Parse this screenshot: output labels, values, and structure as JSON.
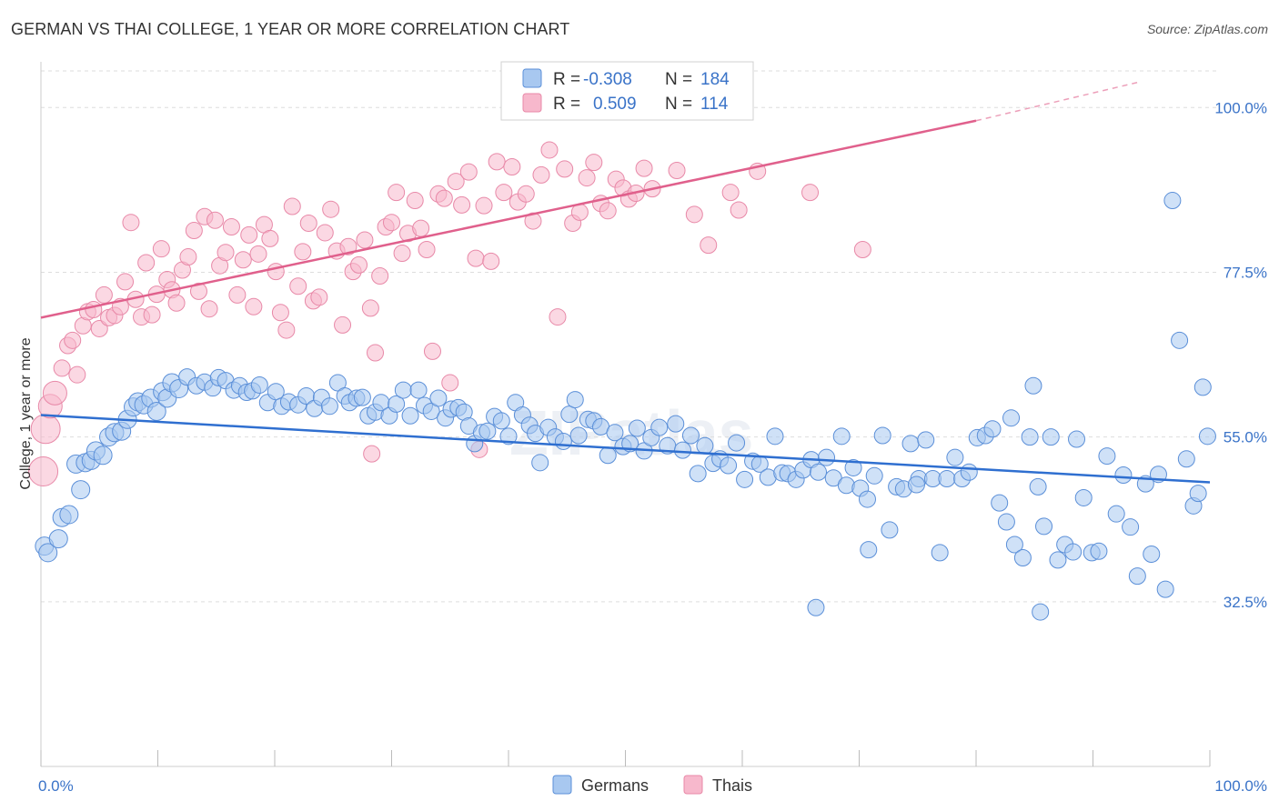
{
  "title": "GERMAN VS THAI COLLEGE, 1 YEAR OR MORE CORRELATION CHART",
  "source": "Source: ZipAtlas.com",
  "watermark": "ZIPatlas",
  "colors": {
    "german_fill": "#a8c8f0",
    "german_stroke": "#5b8fd8",
    "german_line": "#2f6fd0",
    "thai_fill": "#f7b8cc",
    "thai_stroke": "#e889a8",
    "thai_line": "#e0608c",
    "tick_text": "#3a73c8",
    "grid": "#dddddd"
  },
  "legend": {
    "german": {
      "r_label": "R =",
      "r_value": "-0.308",
      "n_label": "N =",
      "n_value": "184"
    },
    "thai": {
      "r_label": "R =",
      "r_value": "0.509",
      "n_label": "N =",
      "n_value": "114"
    }
  },
  "bottom_legend": {
    "german": "Germans",
    "thai": "Thais"
  },
  "chart_data": {
    "type": "scatter",
    "xlabel": "",
    "ylabel": "College, 1 year or more",
    "x_tick_labels": [
      "0.0%",
      "100.0%"
    ],
    "y_tick_labels": [
      "100.0%",
      "77.5%",
      "55.0%",
      "32.5%"
    ],
    "y_tick_values": [
      100.0,
      77.5,
      55.0,
      32.5
    ],
    "xlim": [
      0,
      100
    ],
    "ylim": [
      10,
      105
    ],
    "grid": true,
    "legend_position": "top-center",
    "series": [
      {
        "name": "Germans",
        "r": -0.308,
        "n": 184,
        "trend": {
          "x0": 0,
          "y0": 58.0,
          "x1": 100,
          "y1": 48.8
        },
        "points": [
          [
            0.3,
            40.1
          ],
          [
            0.6,
            39.2
          ],
          [
            1.5,
            41.1
          ],
          [
            1.8,
            44.0
          ],
          [
            2.4,
            44.4
          ],
          [
            3.0,
            51.3
          ],
          [
            3.4,
            47.8
          ],
          [
            3.8,
            51.5
          ],
          [
            4.3,
            51.8
          ],
          [
            4.7,
            53.1
          ],
          [
            5.3,
            52.5
          ],
          [
            5.8,
            55.0
          ],
          [
            6.3,
            55.6
          ],
          [
            6.9,
            55.8
          ],
          [
            7.4,
            57.4
          ],
          [
            7.9,
            59.1
          ],
          [
            8.3,
            59.8
          ],
          [
            8.8,
            59.4
          ],
          [
            9.4,
            60.3
          ],
          [
            9.9,
            58.5
          ],
          [
            10.4,
            61.2
          ],
          [
            10.8,
            60.3
          ],
          [
            11.2,
            62.4
          ],
          [
            11.8,
            61.6
          ],
          [
            12.5,
            63.2
          ],
          [
            13.3,
            62.0
          ],
          [
            14.0,
            62.5
          ],
          [
            14.7,
            61.7
          ],
          [
            15.2,
            63.1
          ],
          [
            15.8,
            62.7
          ],
          [
            16.5,
            61.4
          ],
          [
            17.0,
            62.0
          ],
          [
            17.6,
            61.1
          ],
          [
            18.1,
            61.3
          ],
          [
            18.7,
            62.1
          ],
          [
            19.4,
            59.7
          ],
          [
            20.1,
            61.2
          ],
          [
            20.6,
            59.2
          ],
          [
            21.2,
            59.8
          ],
          [
            22.0,
            59.4
          ],
          [
            22.7,
            60.6
          ],
          [
            23.4,
            58.9
          ],
          [
            24.0,
            60.4
          ],
          [
            24.7,
            59.2
          ],
          [
            25.4,
            62.4
          ],
          [
            26.0,
            60.6
          ],
          [
            26.4,
            59.7
          ],
          [
            27.0,
            60.3
          ],
          [
            27.5,
            60.4
          ],
          [
            28.0,
            57.9
          ],
          [
            28.6,
            58.4
          ],
          [
            29.1,
            59.7
          ],
          [
            29.8,
            57.9
          ],
          [
            30.4,
            59.5
          ],
          [
            31.0,
            61.4
          ],
          [
            31.6,
            57.9
          ],
          [
            32.3,
            61.4
          ],
          [
            32.8,
            59.3
          ],
          [
            33.4,
            58.5
          ],
          [
            34.0,
            60.3
          ],
          [
            34.6,
            57.6
          ],
          [
            35.1,
            58.8
          ],
          [
            35.7,
            59.0
          ],
          [
            36.2,
            58.4
          ],
          [
            36.6,
            56.5
          ],
          [
            37.1,
            54.1
          ],
          [
            37.7,
            55.6
          ],
          [
            38.2,
            55.8
          ],
          [
            38.8,
            57.8
          ],
          [
            39.4,
            57.2
          ],
          [
            40.0,
            55.1
          ],
          [
            40.6,
            59.7
          ],
          [
            41.2,
            58.0
          ],
          [
            41.8,
            56.6
          ],
          [
            42.3,
            55.5
          ],
          [
            42.7,
            51.5
          ],
          [
            43.4,
            56.3
          ],
          [
            44.0,
            55.0
          ],
          [
            44.7,
            54.4
          ],
          [
            45.2,
            58.1
          ],
          [
            45.7,
            60.1
          ],
          [
            46.0,
            55.2
          ],
          [
            46.8,
            57.4
          ],
          [
            47.3,
            57.2
          ],
          [
            47.9,
            56.4
          ],
          [
            48.5,
            52.5
          ],
          [
            49.1,
            55.6
          ],
          [
            49.8,
            53.7
          ],
          [
            50.4,
            54.1
          ],
          [
            51.0,
            56.2
          ],
          [
            51.6,
            53.1
          ],
          [
            52.2,
            54.9
          ],
          [
            52.9,
            56.3
          ],
          [
            53.6,
            53.8
          ],
          [
            54.3,
            56.8
          ],
          [
            54.9,
            53.2
          ],
          [
            55.6,
            55.2
          ],
          [
            56.2,
            50.0
          ],
          [
            56.8,
            53.8
          ],
          [
            57.5,
            51.4
          ],
          [
            58.1,
            52.0
          ],
          [
            58.8,
            51.1
          ],
          [
            59.5,
            54.2
          ],
          [
            60.2,
            49.2
          ],
          [
            60.9,
            51.7
          ],
          [
            61.5,
            51.3
          ],
          [
            62.2,
            49.5
          ],
          [
            62.8,
            55.1
          ],
          [
            63.4,
            50.1
          ],
          [
            63.9,
            50.0
          ],
          [
            64.6,
            49.2
          ],
          [
            65.2,
            50.5
          ],
          [
            65.9,
            51.9
          ],
          [
            66.5,
            50.2
          ],
          [
            67.2,
            52.2
          ],
          [
            67.8,
            49.4
          ],
          [
            68.5,
            55.1
          ],
          [
            68.9,
            48.4
          ],
          [
            69.5,
            50.8
          ],
          [
            70.1,
            48.0
          ],
          [
            70.7,
            46.5
          ],
          [
            71.3,
            49.7
          ],
          [
            72.0,
            55.2
          ],
          [
            72.6,
            42.3
          ],
          [
            73.2,
            48.2
          ],
          [
            73.8,
            47.9
          ],
          [
            74.4,
            54.1
          ],
          [
            75.1,
            49.3
          ],
          [
            75.7,
            54.6
          ],
          [
            76.3,
            49.3
          ],
          [
            76.9,
            39.2
          ],
          [
            77.5,
            49.3
          ],
          [
            78.2,
            52.2
          ],
          [
            78.8,
            49.3
          ],
          [
            79.4,
            50.2
          ],
          [
            80.1,
            54.9
          ],
          [
            80.8,
            55.2
          ],
          [
            81.4,
            56.1
          ],
          [
            82.0,
            46.0
          ],
          [
            82.6,
            43.4
          ],
          [
            83.0,
            57.6
          ],
          [
            83.3,
            40.3
          ],
          [
            84.0,
            38.5
          ],
          [
            84.6,
            55.0
          ],
          [
            85.3,
            48.2
          ],
          [
            85.8,
            42.8
          ],
          [
            86.4,
            55.0
          ],
          [
            87.0,
            38.2
          ],
          [
            87.6,
            40.3
          ],
          [
            88.3,
            39.3
          ],
          [
            88.6,
            54.7
          ],
          [
            89.2,
            46.7
          ],
          [
            89.9,
            39.2
          ],
          [
            90.5,
            39.4
          ],
          [
            91.2,
            52.4
          ],
          [
            92.0,
            44.5
          ],
          [
            92.6,
            49.8
          ],
          [
            93.2,
            42.7
          ],
          [
            93.8,
            36.0
          ],
          [
            94.5,
            48.6
          ],
          [
            95.0,
            39.0
          ],
          [
            95.6,
            49.9
          ],
          [
            96.2,
            34.2
          ],
          [
            96.8,
            87.3
          ],
          [
            97.4,
            68.2
          ],
          [
            98.0,
            52.0
          ],
          [
            98.6,
            45.6
          ],
          [
            99.0,
            47.3
          ],
          [
            99.4,
            61.8
          ],
          [
            99.8,
            55.1
          ],
          [
            85.5,
            31.1
          ],
          [
            66.3,
            31.7
          ],
          [
            84.9,
            62.0
          ],
          [
            70.8,
            39.6
          ],
          [
            74.9,
            48.5
          ]
        ]
      },
      {
        "name": "Thais",
        "r": 0.509,
        "n": 114,
        "trend": {
          "x0": 0,
          "y0": 71.3,
          "x1": 80,
          "y1": 98.2,
          "dash_x1": 94,
          "dash_y1": 103.5
        },
        "points": [
          [
            0.2,
            50.3
          ],
          [
            0.4,
            56.1
          ],
          [
            0.8,
            59.2
          ],
          [
            1.2,
            61.0
          ],
          [
            1.8,
            64.4
          ],
          [
            2.3,
            67.5
          ],
          [
            2.7,
            68.2
          ],
          [
            3.1,
            63.5
          ],
          [
            3.6,
            70.2
          ],
          [
            4.0,
            72.1
          ],
          [
            4.5,
            72.4
          ],
          [
            5.0,
            69.8
          ],
          [
            5.4,
            74.4
          ],
          [
            5.8,
            71.3
          ],
          [
            6.3,
            71.6
          ],
          [
            6.8,
            72.8
          ],
          [
            7.2,
            76.2
          ],
          [
            7.7,
            84.3
          ],
          [
            8.1,
            73.8
          ],
          [
            8.6,
            71.4
          ],
          [
            9.0,
            78.8
          ],
          [
            9.5,
            71.7
          ],
          [
            9.9,
            74.5
          ],
          [
            10.3,
            80.7
          ],
          [
            10.8,
            76.5
          ],
          [
            11.2,
            75.1
          ],
          [
            11.6,
            73.3
          ],
          [
            12.1,
            77.8
          ],
          [
            12.6,
            79.6
          ],
          [
            13.1,
            83.2
          ],
          [
            13.5,
            74.9
          ],
          [
            14.0,
            85.1
          ],
          [
            14.4,
            72.5
          ],
          [
            14.9,
            84.6
          ],
          [
            15.3,
            78.4
          ],
          [
            15.8,
            80.2
          ],
          [
            16.3,
            83.7
          ],
          [
            16.8,
            74.4
          ],
          [
            17.3,
            79.2
          ],
          [
            17.8,
            82.6
          ],
          [
            18.2,
            72.8
          ],
          [
            18.6,
            80.0
          ],
          [
            19.1,
            84.0
          ],
          [
            19.6,
            82.1
          ],
          [
            20.1,
            77.6
          ],
          [
            20.5,
            72.0
          ],
          [
            21.0,
            69.6
          ],
          [
            21.5,
            86.5
          ],
          [
            22.0,
            75.6
          ],
          [
            22.4,
            80.3
          ],
          [
            22.9,
            84.2
          ],
          [
            23.3,
            73.6
          ],
          [
            23.8,
            74.1
          ],
          [
            24.3,
            82.9
          ],
          [
            24.8,
            86.1
          ],
          [
            25.3,
            80.4
          ],
          [
            25.8,
            70.3
          ],
          [
            26.3,
            81.0
          ],
          [
            26.7,
            77.6
          ],
          [
            27.2,
            78.5
          ],
          [
            27.7,
            81.9
          ],
          [
            28.2,
            72.6
          ],
          [
            28.6,
            66.5
          ],
          [
            29.0,
            77.0
          ],
          [
            29.5,
            83.7
          ],
          [
            30.0,
            84.3
          ],
          [
            30.4,
            88.4
          ],
          [
            30.9,
            80.1
          ],
          [
            31.4,
            82.8
          ],
          [
            32.0,
            87.3
          ],
          [
            32.5,
            83.5
          ],
          [
            33.0,
            80.6
          ],
          [
            33.5,
            66.7
          ],
          [
            34.0,
            88.2
          ],
          [
            34.5,
            87.6
          ],
          [
            35.0,
            62.4
          ],
          [
            35.5,
            89.9
          ],
          [
            36.0,
            86.7
          ],
          [
            36.6,
            91.2
          ],
          [
            37.2,
            79.4
          ],
          [
            37.9,
            86.6
          ],
          [
            38.5,
            79.0
          ],
          [
            39.0,
            92.6
          ],
          [
            39.6,
            88.4
          ],
          [
            40.3,
            91.9
          ],
          [
            40.8,
            87.1
          ],
          [
            41.5,
            88.2
          ],
          [
            42.1,
            84.5
          ],
          [
            42.8,
            90.8
          ],
          [
            43.5,
            94.2
          ],
          [
            44.2,
            71.4
          ],
          [
            44.8,
            91.6
          ],
          [
            45.5,
            84.2
          ],
          [
            46.1,
            85.7
          ],
          [
            46.7,
            90.4
          ],
          [
            47.3,
            92.5
          ],
          [
            47.9,
            86.9
          ],
          [
            48.5,
            85.9
          ],
          [
            49.2,
            90.2
          ],
          [
            49.8,
            89.0
          ],
          [
            50.3,
            87.5
          ],
          [
            50.9,
            88.3
          ],
          [
            51.6,
            91.7
          ],
          [
            52.3,
            88.9
          ],
          [
            54.4,
            91.4
          ],
          [
            55.9,
            85.4
          ],
          [
            57.1,
            81.2
          ],
          [
            59.0,
            88.4
          ],
          [
            59.7,
            86.0
          ],
          [
            61.3,
            91.3
          ],
          [
            65.8,
            88.4
          ],
          [
            70.3,
            80.6
          ],
          [
            28.3,
            52.7
          ],
          [
            37.5,
            53.3
          ]
        ]
      }
    ]
  }
}
